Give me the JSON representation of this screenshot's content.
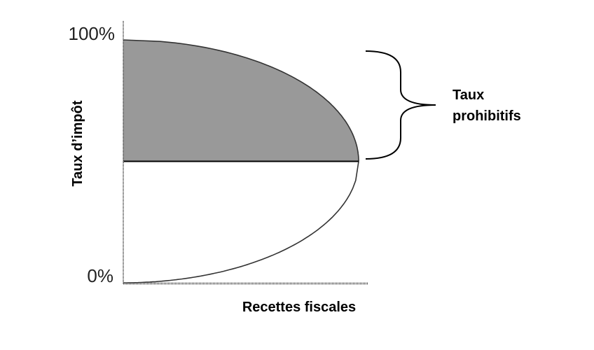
{
  "chart_data": {
    "type": "area",
    "title": "",
    "xlabel": "Recettes fiscales",
    "ylabel": "Taux d’impôt",
    "y_ticks": [
      "100%",
      "0%"
    ],
    "ylim": [
      0,
      100
    ],
    "curve": {
      "name": "",
      "points": [
        {
          "y": 0,
          "x": 0
        },
        {
          "y": 50,
          "x": 1
        },
        {
          "y": 100,
          "x": 0
        }
      ]
    },
    "revenue_maximizing_rate": 50,
    "shaded_region": {
      "y_from": 50,
      "y_to": 100,
      "color": "#999999"
    },
    "annotation": {
      "line1": "Taux",
      "line2": "prohibitifs",
      "y_from": 50,
      "y_to": 100
    },
    "grid": false,
    "legend": "none"
  }
}
